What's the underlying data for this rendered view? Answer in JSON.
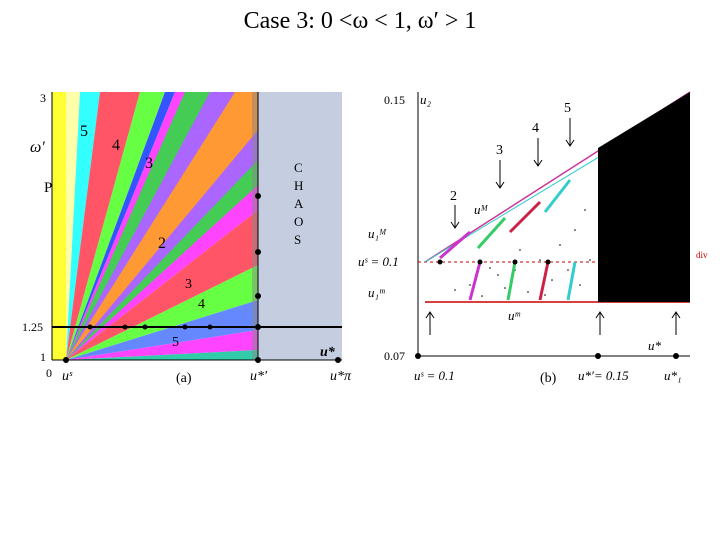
{
  "title": "Case 3: 0 <ω < 1,  ω′ > 1",
  "panel_a": {
    "caption": "(a)",
    "y_axis_label": "ω′",
    "y_ticks": [
      "3",
      "1.25",
      "1"
    ],
    "x_ticks": [
      "0",
      "uˢ",
      "u*′",
      "u*π"
    ],
    "u_star_label": "u*",
    "region_labels": [
      "5",
      "4",
      "3",
      "2",
      "3",
      "4",
      "5"
    ],
    "p_label": "P",
    "chaos_letters": [
      "C",
      "H",
      "A",
      "O",
      "S"
    ],
    "colors": {
      "chaos_bg": "#c5cde0",
      "yellow": "#ffff33",
      "cyan": "#33ffff",
      "red": "#ff5566",
      "green": "#66ff44",
      "magenta": "#ff44ff",
      "orange": "#ff9933",
      "blue": "#6688ff"
    }
  },
  "panel_b": {
    "caption": "(b)",
    "y_axis_label": "u₂",
    "y_ticks": [
      "0.15",
      "0.1",
      "0.07"
    ],
    "left_labels": [
      "u₁ᴹ",
      "uˢ = 0.1",
      "u₁ᵐ"
    ],
    "inner_labels": [
      "uᴹ",
      "uᵐ"
    ],
    "arrow_numbers": [
      "5",
      "4",
      "3",
      "2"
    ],
    "x_labels": [
      "uˢ = 0.1",
      "u*′= 0.15",
      "u*₁"
    ],
    "u_star_label": "u*",
    "div_label": "div"
  }
}
